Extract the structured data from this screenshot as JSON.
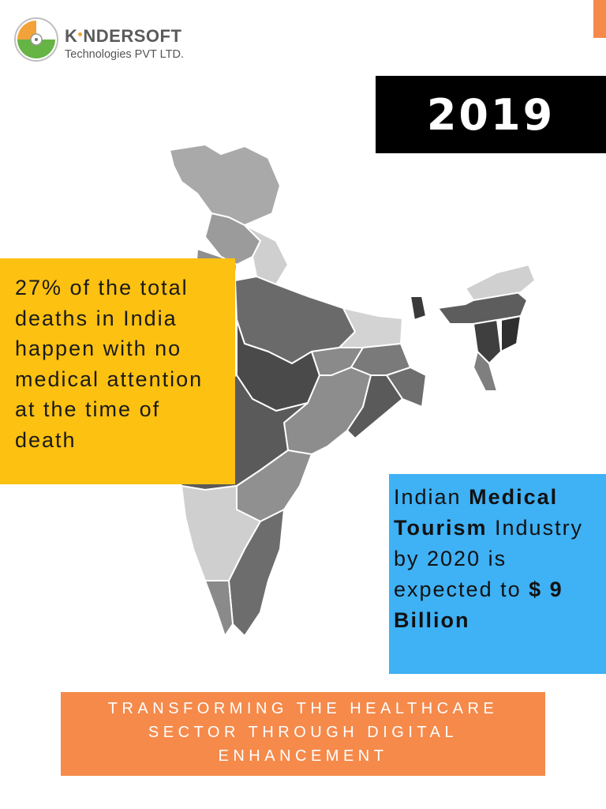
{
  "logo": {
    "brand_before": "K",
    "brand_after": "NDERSOFT",
    "subtitle": "Technologies PVT LTD."
  },
  "year": "2019",
  "stat": {
    "text": "27% of the total deaths in India happen with no medical attention at the time of death"
  },
  "tourism": {
    "parts": [
      {
        "text": "Indian ",
        "bold": false
      },
      {
        "text": "Medical Tourism",
        "bold": true
      },
      {
        "text": " Industry by 2020 is expected to ",
        "bold": false
      },
      {
        "text": "$ 9 Billion",
        "bold": true
      }
    ]
  },
  "banner": {
    "text": "TRANSFORMING THE HEALTHCARE SECTOR THROUGH DIGITAL ENHANCEMENT"
  },
  "colors": {
    "accent_orange": "#f58a4b",
    "yellow": "#fcc111",
    "blue": "#3fb1f5",
    "black": "#000000"
  },
  "icons": [
    "kindersoft-logo-icon",
    "india-map-graphic"
  ]
}
